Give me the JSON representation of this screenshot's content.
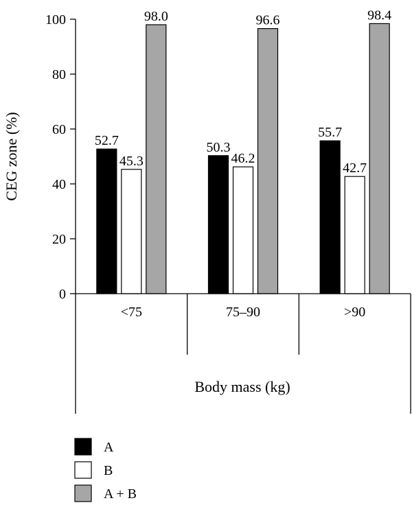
{
  "chart_data": {
    "type": "bar",
    "title": "",
    "xlabel": "Body mass (kg)",
    "ylabel": "CEG zone (%)",
    "ylim": [
      0,
      100
    ],
    "yticks": [
      "0",
      "20",
      "40",
      "60",
      "80",
      "100"
    ],
    "categories": [
      "<75",
      "75–90",
      ">90"
    ],
    "series": [
      {
        "name": "A",
        "values": [
          52.7,
          50.3,
          55.7
        ],
        "labels": [
          "52.7",
          "50.3",
          "55.7"
        ],
        "color": "#000000"
      },
      {
        "name": "B",
        "values": [
          45.3,
          46.2,
          42.7
        ],
        "labels": [
          "45.3",
          "46.2",
          "42.7"
        ],
        "color": "#ffffff"
      },
      {
        "name": "A + B",
        "values": [
          98.0,
          96.6,
          98.4
        ],
        "labels": [
          "98.0",
          "96.6",
          "98.4"
        ],
        "color": "#a6a6a6"
      }
    ],
    "legend": "bottom-left",
    "grid": false
  }
}
